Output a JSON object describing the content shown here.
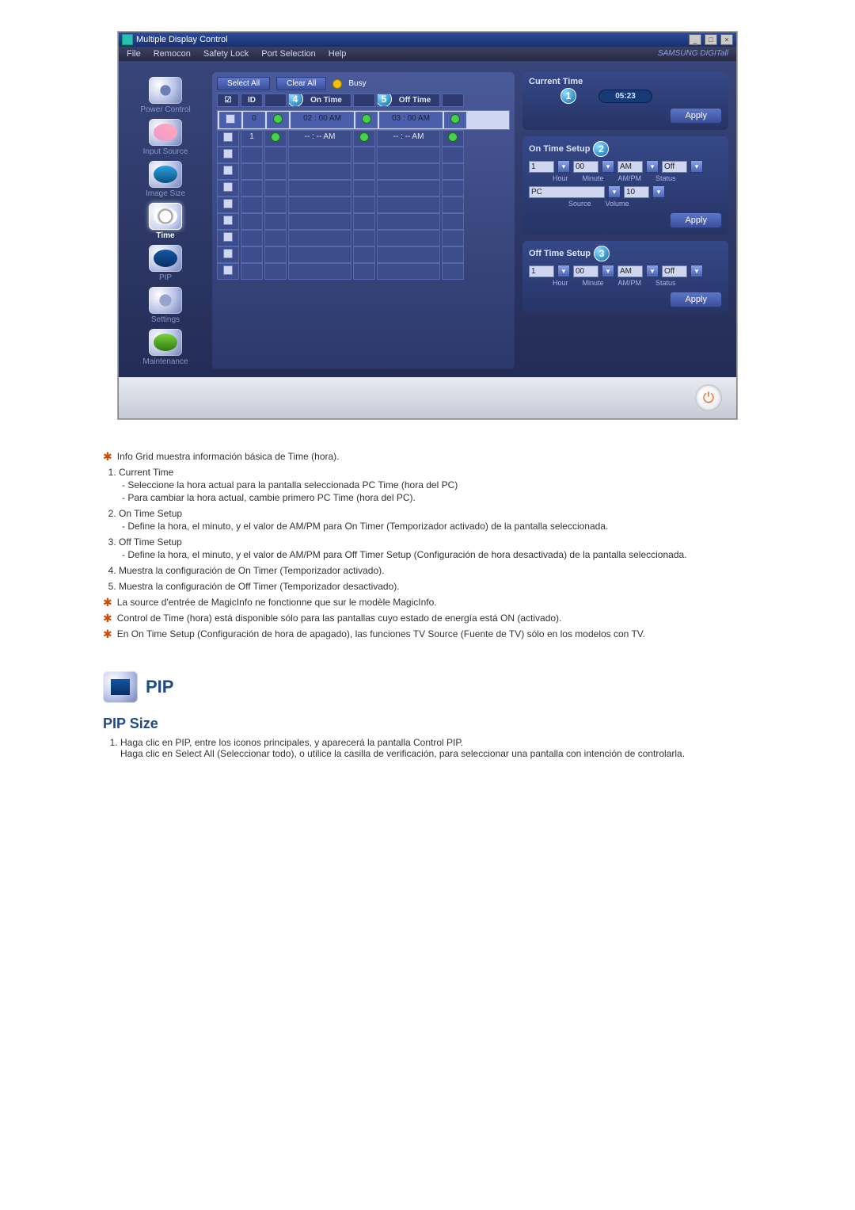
{
  "app": {
    "title": "Multiple Display Control",
    "menus": [
      "File",
      "Remocon",
      "Safety Lock",
      "Port Selection",
      "Help"
    ],
    "brand": "SAMSUNG DIGITall"
  },
  "sidebar": [
    {
      "label": "Power Control"
    },
    {
      "label": "Input Source"
    },
    {
      "label": "Image Size"
    },
    {
      "label": "Time"
    },
    {
      "label": "PIP"
    },
    {
      "label": "Settings"
    },
    {
      "label": "Maintenance"
    }
  ],
  "gridTop": {
    "selectAll": "Select All",
    "clearAll": "Clear All",
    "busy": "Busy"
  },
  "gridHeaders": {
    "chk": "☑",
    "id": "ID",
    "st": "",
    "onTime": "On Time",
    "s1": "",
    "offTime": "Off Time",
    "s2": ""
  },
  "badge4": "4",
  "badge5": "5",
  "gridRows": [
    {
      "id": "0",
      "on": "02 : 00  AM",
      "off": "03 : 00  AM",
      "sel": true,
      "led": true
    },
    {
      "id": "1",
      "on": "-- : --  AM",
      "off": "-- : --  AM",
      "sel": false,
      "led": true
    },
    {
      "id": "",
      "on": "",
      "off": "",
      "sel": false,
      "led": false
    },
    {
      "id": "",
      "on": "",
      "off": "",
      "sel": false,
      "led": false
    },
    {
      "id": "",
      "on": "",
      "off": "",
      "sel": false,
      "led": false
    },
    {
      "id": "",
      "on": "",
      "off": "",
      "sel": false,
      "led": false
    },
    {
      "id": "",
      "on": "",
      "off": "",
      "sel": false,
      "led": false
    },
    {
      "id": "",
      "on": "",
      "off": "",
      "sel": false,
      "led": false
    },
    {
      "id": "",
      "on": "",
      "off": "",
      "sel": false,
      "led": false
    },
    {
      "id": "",
      "on": "",
      "off": "",
      "sel": false,
      "led": false
    }
  ],
  "panels": {
    "currentTime": {
      "title": "Current Time",
      "badge": "1",
      "value": "05:23",
      "apply": "Apply"
    },
    "onTime": {
      "title": "On Time Setup",
      "badge": "2",
      "hour": "1",
      "minute": "00",
      "ampm": "AM",
      "status": "Off",
      "source": "PC",
      "volume": "10",
      "labels": {
        "h": "Hour",
        "m": "Minute",
        "a": "AM/PM",
        "s": "Status",
        "src": "Source",
        "vol": "Volume"
      },
      "apply": "Apply"
    },
    "offTime": {
      "title": "Off Time Setup",
      "badge": "3",
      "hour": "1",
      "minute": "00",
      "ampm": "AM",
      "status": "Off",
      "labels": {
        "h": "Hour",
        "m": "Minute",
        "a": "AM/PM",
        "s": "Status"
      },
      "apply": "Apply"
    }
  },
  "notes": {
    "star1": "Info Grid muestra información básica de Time (hora).",
    "item1": {
      "t": "Current Time",
      "s1": "Seleccione la hora actual para la pantalla seleccionada PC Time (hora del PC)",
      "s2": "Para cambiar la hora actual, cambie primero PC Time (hora del PC)."
    },
    "item2": {
      "t": "On Time Setup",
      "s1": "Define la hora, el minuto, y el valor de AM/PM para On Timer (Temporizador activado) de la pantalla seleccionada."
    },
    "item3": {
      "t": "Off Time Setup",
      "s1": "Define la hora, el minuto, y el valor de AM/PM para Off Timer Setup (Configuración de hora desactivada) de la pantalla seleccionada."
    },
    "item4": "Muestra la configuración de On Timer (Temporizador activado).",
    "item5": "Muestra la configuración de Off Timer (Temporizador desactivado).",
    "star2": "La source d'entrée de MagicInfo ne fonctionne que sur le modèle MagicInfo.",
    "star3": "Control de Time (hora) está disponible sólo para las pantallas cuyo estado de energía está ON (activado).",
    "star4": "En On Time Setup (Configuración de hora de apagado), las funciones TV Source (Fuente de TV) sólo en los modelos con TV."
  },
  "pip": {
    "heading": "PIP",
    "sub": "PIP Size",
    "li1": "Haga clic en PIP, entre los iconos principales, y aparecerá la pantalla Control PIP.",
    "li1b": "Haga clic en Select All (Seleccionar todo), o utilice la casilla de verificación, para seleccionar una pantalla con intención de controlarla."
  }
}
